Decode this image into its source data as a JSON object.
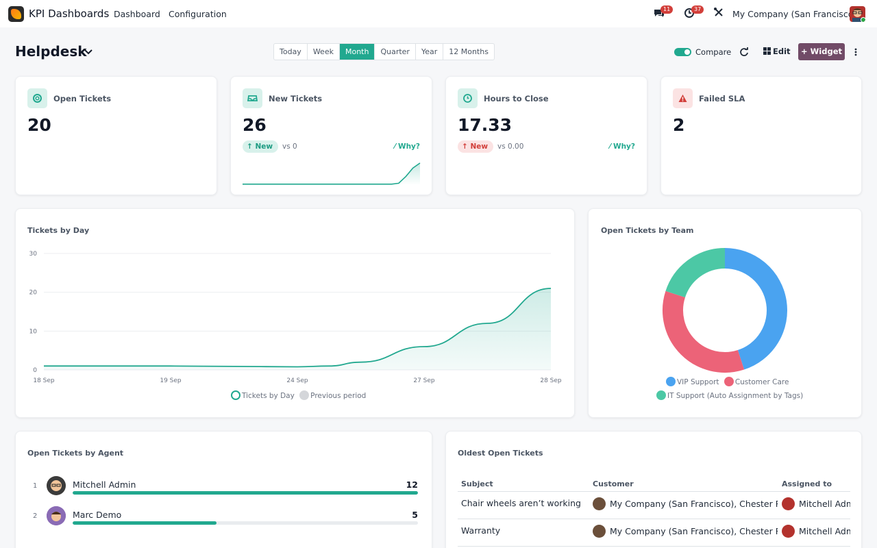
{
  "navbar": {
    "app_name": "KPI Dashboards",
    "menu": [
      "Dashboard",
      "Configuration"
    ],
    "messages_badge": "11",
    "activities_badge": "37",
    "company": "My Company (San Francisco)"
  },
  "toolbar": {
    "title": "Helpdesk",
    "periods": [
      "Today",
      "Week",
      "Month",
      "Quarter",
      "Year",
      "12 Months"
    ],
    "active_period": "Month",
    "compare_label": "Compare",
    "compare_on": true,
    "edit_label": "Edit",
    "widget_label": "+ Widget"
  },
  "kpis": [
    {
      "label": "Open Tickets",
      "value": "20",
      "icon": "lifebuoy-icon"
    },
    {
      "label": "New Tickets",
      "value": "26",
      "icon": "inbox-icon",
      "pill": "New",
      "vs": "vs 0",
      "why": "Why?",
      "trend": "up",
      "spark": [
        1,
        1,
        1,
        1,
        1,
        1,
        1,
        1,
        1,
        1,
        1,
        1,
        1,
        1,
        1,
        1,
        1,
        1,
        1,
        1,
        1,
        1,
        2,
        10,
        20,
        26
      ]
    },
    {
      "label": "Hours to Close",
      "value": "17.33",
      "icon": "clock-icon",
      "pill": "New",
      "vs": "vs 0.00",
      "why": "Why?",
      "trend": "up-bad"
    },
    {
      "label": "Failed SLA",
      "value": "2",
      "icon": "warning-icon"
    }
  ],
  "colors": {
    "accent": "#21a88f",
    "brand": "#714b67",
    "vip": "#4aa3f0",
    "care": "#ec6378",
    "it": "#4cc8a5"
  },
  "tickets_by_day": {
    "title": "Tickets by Day",
    "chart_data": {
      "type": "area",
      "x_ticks": [
        "18 Sep",
        "19 Sep",
        "24 Sep",
        "27 Sep",
        "28 Sep"
      ],
      "y_ticks": [
        0,
        10,
        20,
        30
      ],
      "ylim": [
        0,
        30
      ],
      "series": [
        {
          "name": "Tickets by Day",
          "points": [
            [
              0,
              1
            ],
            [
              1,
              1
            ],
            [
              2,
              1
            ],
            [
              3,
              0.9
            ],
            [
              4,
              0.8
            ],
            [
              4.5,
              1
            ],
            [
              5,
              2
            ],
            [
              6,
              6
            ],
            [
              7,
              12
            ],
            [
              8,
              21
            ]
          ]
        },
        {
          "name": "Previous period",
          "points": []
        }
      ],
      "legend": [
        "Tickets by Day",
        "Previous period"
      ]
    }
  },
  "open_by_team": {
    "title": "Open Tickets by Team",
    "chart_data": {
      "type": "pie",
      "labels": [
        "VIP Support",
        "Customer Care",
        "IT Support (Auto Assignment by Tags)"
      ],
      "values": [
        9,
        7,
        4
      ]
    }
  },
  "by_agent": {
    "title": "Open Tickets by Agent",
    "rows": [
      {
        "rank": "1",
        "name": "Mitchell Admin",
        "count": "12",
        "fraction": 1.0
      },
      {
        "rank": "2",
        "name": "Marc Demo",
        "count": "5",
        "fraction": 0.417
      }
    ]
  },
  "oldest": {
    "title": "Oldest Open Tickets",
    "headers": [
      "Subject",
      "Customer",
      "Assigned to"
    ],
    "rows": [
      {
        "subject": "Chair wheels aren’t working",
        "customer": "My Company (San Francisco), Chester Reed",
        "assigned": "Mitchell Admin"
      },
      {
        "subject": "Warranty",
        "customer": "My Company (San Francisco), Chester Reed",
        "assigned": "Mitchell Admin"
      }
    ]
  }
}
